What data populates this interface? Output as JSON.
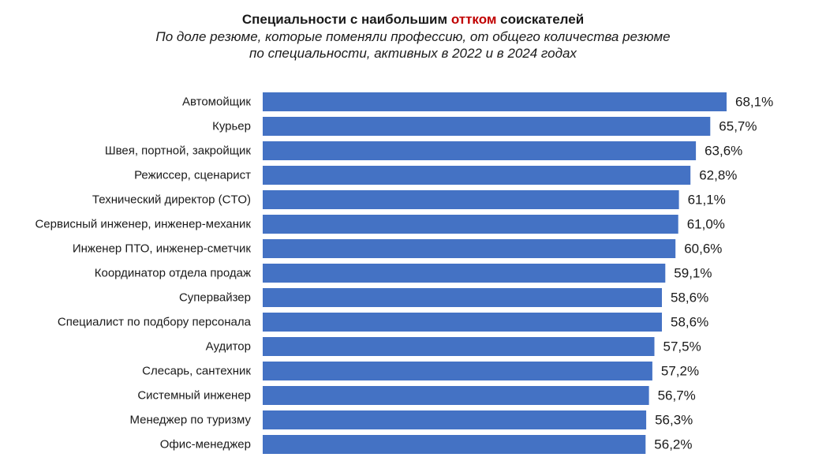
{
  "header": {
    "title_before": "Специальности с наибольшим ",
    "title_accent": "оттком",
    "title_after": " соискателей",
    "subtitle_line1": "По доле резюме, которые поменяли профессию, от общего количества резюме",
    "subtitle_line2": "по специальности, активных в 2022 и в 2024 годах"
  },
  "colors": {
    "bar": "#4472c4",
    "accent": "#c00000"
  },
  "chart_data": {
    "type": "bar",
    "orientation": "horizontal",
    "title": "Специальности с наибольшим оттком соискателей",
    "subtitle": "По доле резюме, которые поменяли профессию, от общего количества резюме по специальности, активных в 2022 и в 2024 годах",
    "categories": [
      "Автомойщик",
      "Курьер",
      "Швея, портной, закройщик",
      "Режиссер, сценарист",
      "Технический директор (CTO)",
      "Сервисный инженер, инженер-механик",
      "Инженер ПТО, инженер-сметчик",
      "Координатор отдела продаж",
      "Супервайзер",
      "Специалист по подбору персонала",
      "Аудитор",
      "Слесарь, сантехник",
      "Системный инженер",
      "Менеджер по туризму",
      "Офис-менеджер"
    ],
    "values": [
      68.1,
      65.7,
      63.6,
      62.8,
      61.1,
      61.0,
      60.6,
      59.1,
      58.6,
      58.6,
      57.5,
      57.2,
      56.7,
      56.3,
      56.2
    ],
    "value_labels": [
      "68,1%",
      "65,7%",
      "63,6%",
      "62,8%",
      "61,1%",
      "61,0%",
      "60,6%",
      "59,1%",
      "58,6%",
      "58,6%",
      "57,5%",
      "57,2%",
      "56,7%",
      "56,3%",
      "56,2%"
    ],
    "unit": "%",
    "xlim": [
      0,
      68.1
    ],
    "xlabel": "",
    "ylabel": "",
    "grid": false,
    "legend": "none"
  }
}
